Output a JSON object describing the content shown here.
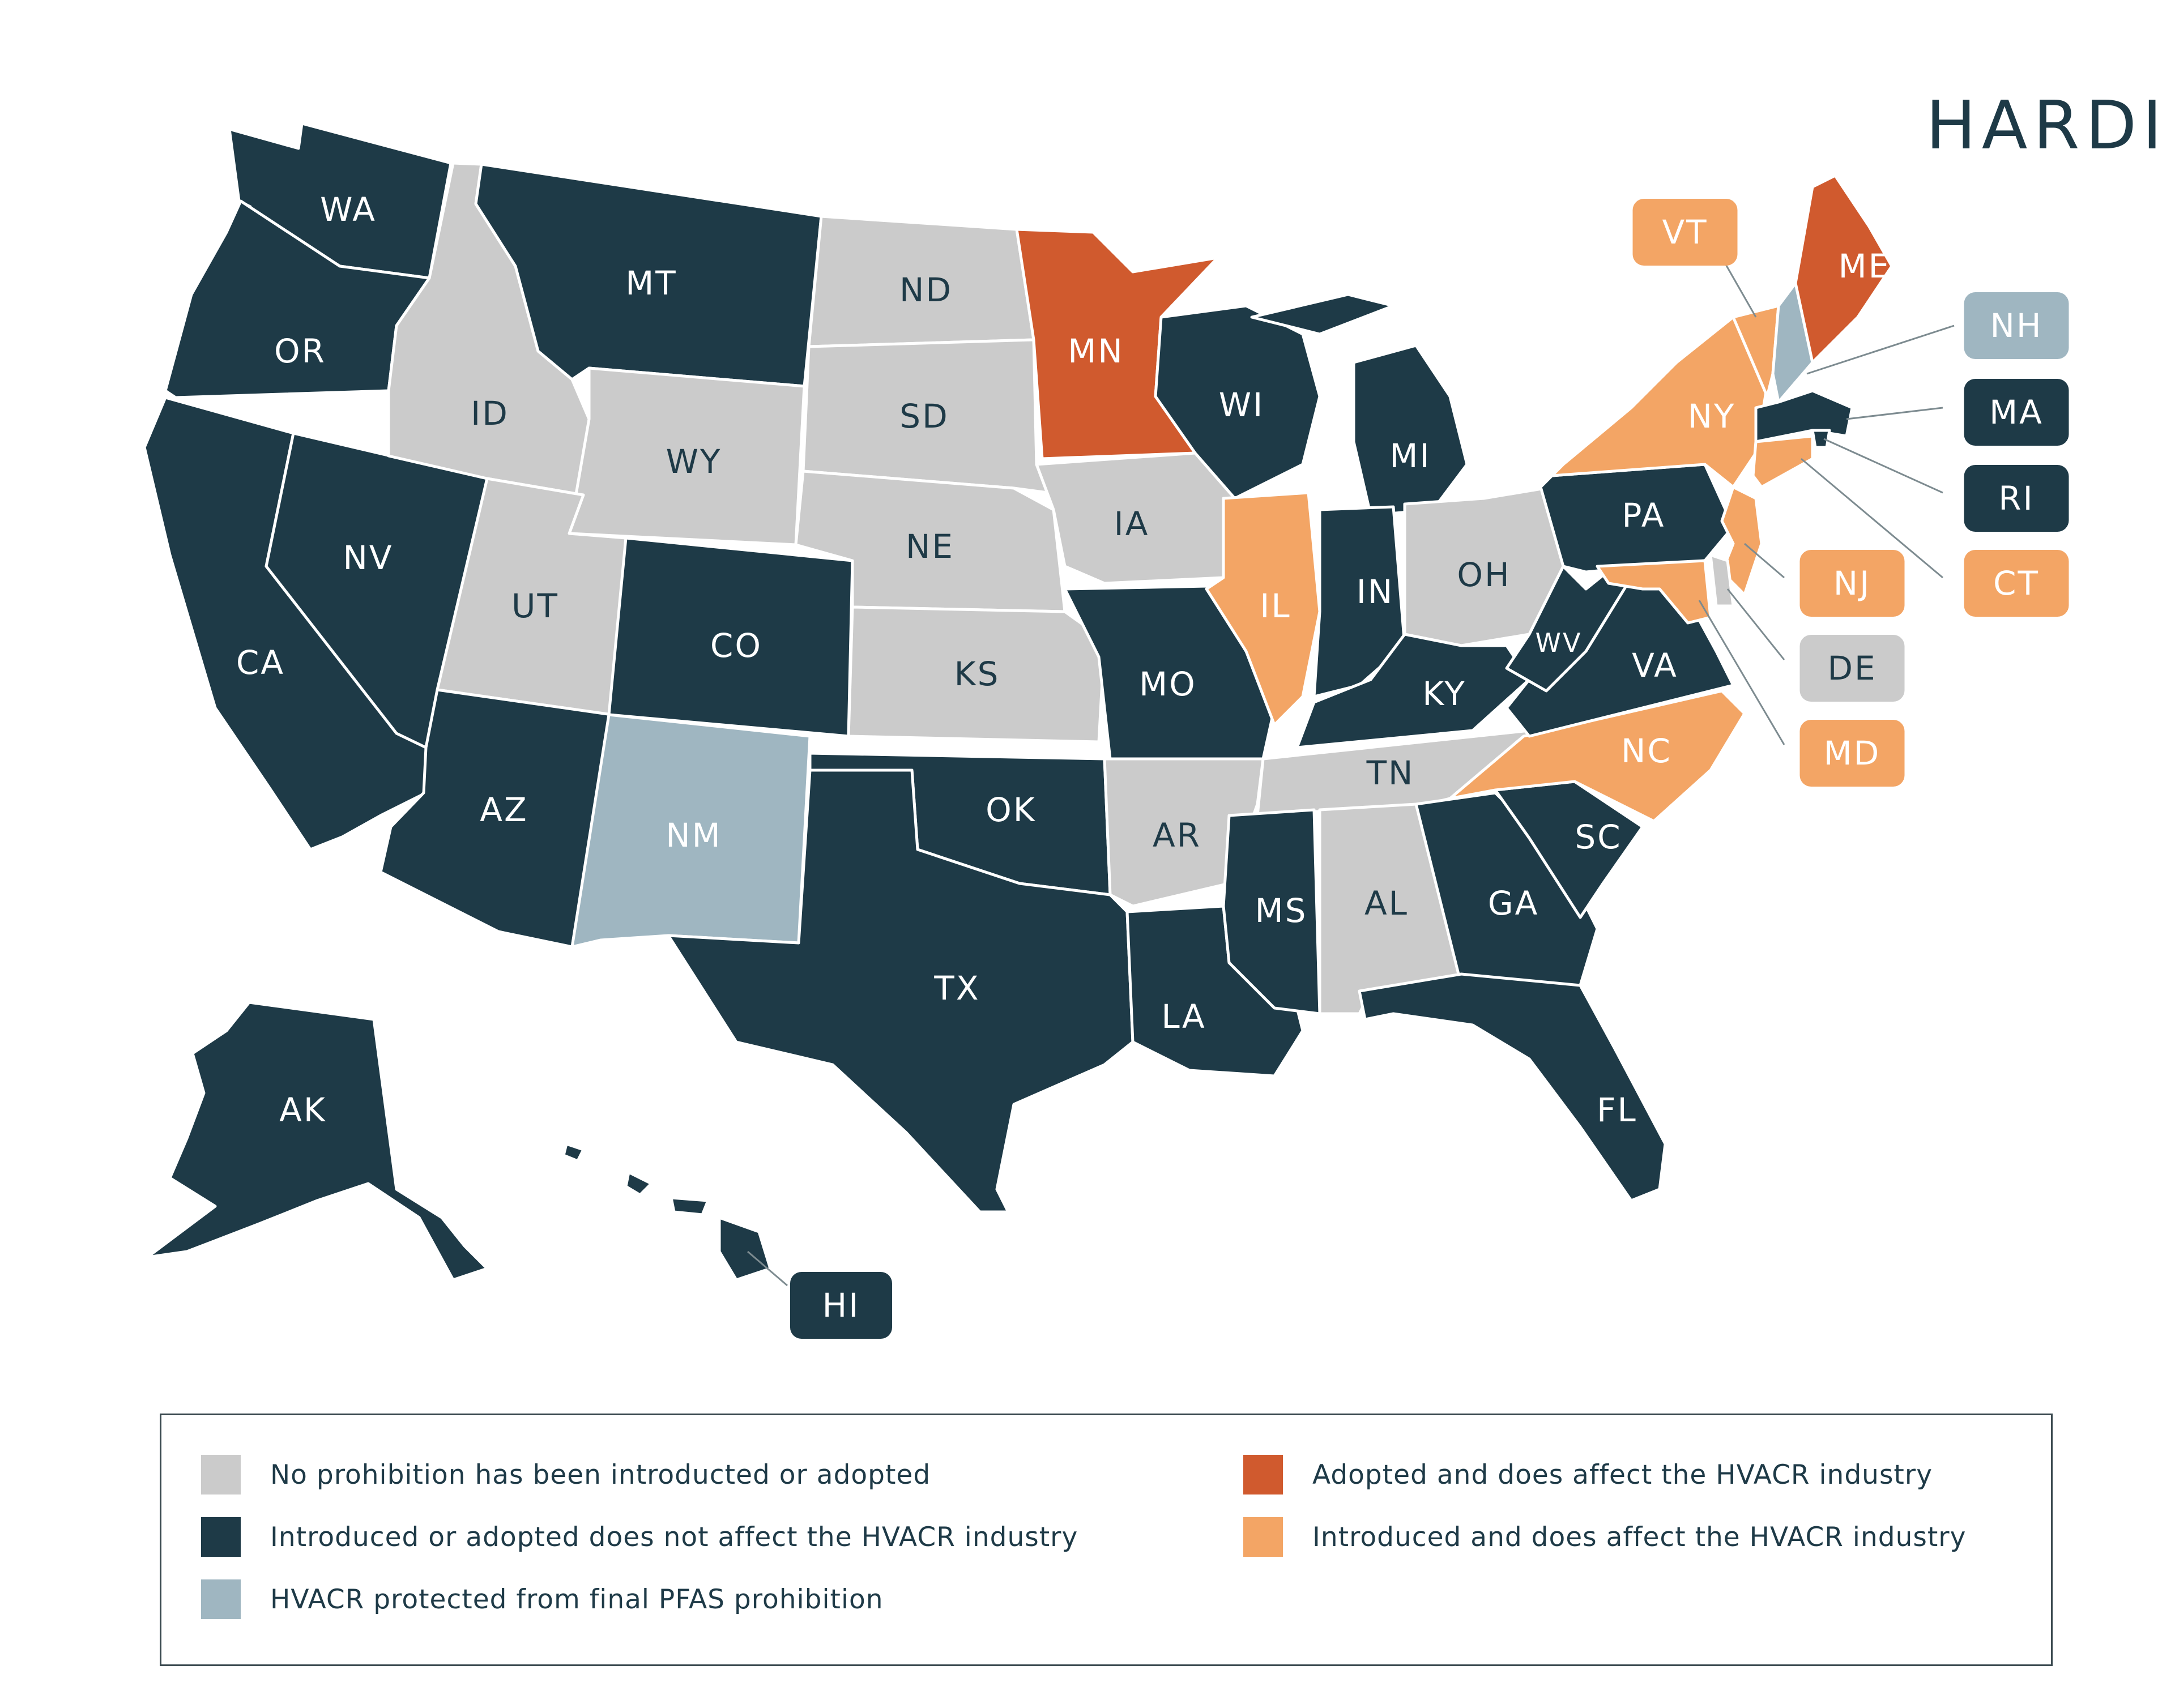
{
  "brand": "HARDI",
  "colors": {
    "none": "#cbcbcb",
    "not_affect": "#1e3a47",
    "protected": "#9fb6c1",
    "adopted_affect": "#d05a2e",
    "introduced_affect": "#f3a565",
    "label_dark_text": "#1e3a47",
    "label_light_text": "#ffffff"
  },
  "legend": [
    {
      "status": "none",
      "label": "No prohibition has been introducted or adopted"
    },
    {
      "status": "not_affect",
      "label": "Introduced or adopted does not affect the HVACR industry"
    },
    {
      "status": "protected",
      "label": "HVACR protected from final PFAS prohibition"
    },
    {
      "status": "adopted_affect",
      "label": "Adopted and does affect the HVACR industry"
    },
    {
      "status": "introduced_affect",
      "label": "Introduced and does affect the HVACR industry"
    }
  ],
  "states": [
    {
      "code": "WA",
      "status": "not_affect"
    },
    {
      "code": "OR",
      "status": "not_affect"
    },
    {
      "code": "CA",
      "status": "not_affect"
    },
    {
      "code": "NV",
      "status": "not_affect"
    },
    {
      "code": "ID",
      "status": "none"
    },
    {
      "code": "MT",
      "status": "not_affect"
    },
    {
      "code": "WY",
      "status": "none"
    },
    {
      "code": "UT",
      "status": "none"
    },
    {
      "code": "AZ",
      "status": "not_affect"
    },
    {
      "code": "CO",
      "status": "not_affect"
    },
    {
      "code": "NM",
      "status": "protected"
    },
    {
      "code": "ND",
      "status": "none"
    },
    {
      "code": "SD",
      "status": "none"
    },
    {
      "code": "NE",
      "status": "none"
    },
    {
      "code": "KS",
      "status": "none"
    },
    {
      "code": "OK",
      "status": "not_affect"
    },
    {
      "code": "TX",
      "status": "not_affect"
    },
    {
      "code": "MN",
      "status": "adopted_affect"
    },
    {
      "code": "IA",
      "status": "none"
    },
    {
      "code": "MO",
      "status": "not_affect"
    },
    {
      "code": "AR",
      "status": "none"
    },
    {
      "code": "LA",
      "status": "not_affect"
    },
    {
      "code": "WI",
      "status": "not_affect"
    },
    {
      "code": "IL",
      "status": "introduced_affect"
    },
    {
      "code": "MI",
      "status": "not_affect"
    },
    {
      "code": "IN",
      "status": "not_affect"
    },
    {
      "code": "OH",
      "status": "none"
    },
    {
      "code": "KY",
      "status": "not_affect"
    },
    {
      "code": "TN",
      "status": "none"
    },
    {
      "code": "MS",
      "status": "not_affect"
    },
    {
      "code": "AL",
      "status": "none"
    },
    {
      "code": "GA",
      "status": "not_affect"
    },
    {
      "code": "FL",
      "status": "not_affect"
    },
    {
      "code": "SC",
      "status": "not_affect"
    },
    {
      "code": "NC",
      "status": "introduced_affect"
    },
    {
      "code": "VA",
      "status": "not_affect"
    },
    {
      "code": "WV",
      "status": "not_affect"
    },
    {
      "code": "PA",
      "status": "not_affect"
    },
    {
      "code": "NY",
      "status": "introduced_affect"
    },
    {
      "code": "VT",
      "status": "introduced_affect"
    },
    {
      "code": "NH",
      "status": "protected"
    },
    {
      "code": "ME",
      "status": "adopted_affect"
    },
    {
      "code": "MA",
      "status": "not_affect"
    },
    {
      "code": "RI",
      "status": "not_affect"
    },
    {
      "code": "CT",
      "status": "introduced_affect"
    },
    {
      "code": "NJ",
      "status": "introduced_affect"
    },
    {
      "code": "DE",
      "status": "none"
    },
    {
      "code": "MD",
      "status": "introduced_affect"
    },
    {
      "code": "AK",
      "status": "not_affect"
    },
    {
      "code": "HI",
      "status": "not_affect"
    }
  ]
}
